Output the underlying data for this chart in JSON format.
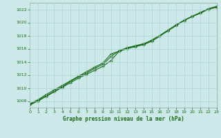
{
  "title": "Graphe pression niveau de la mer (hPa)",
  "xlim": [
    0,
    23
  ],
  "ylim": [
    1007.0,
    1023.0
  ],
  "yticks": [
    1008,
    1010,
    1012,
    1014,
    1016,
    1018,
    1020,
    1022
  ],
  "xticks": [
    0,
    1,
    2,
    3,
    4,
    5,
    6,
    7,
    8,
    9,
    10,
    11,
    12,
    13,
    14,
    15,
    16,
    17,
    18,
    19,
    20,
    21,
    22,
    23
  ],
  "line1_y": [
    1007.4,
    1008.0,
    1008.7,
    1009.4,
    1010.1,
    1010.8,
    1011.5,
    1012.1,
    1012.7,
    1013.3,
    1014.2,
    1015.6,
    1016.1,
    1016.4,
    1016.7,
    1017.3,
    1018.0,
    1018.8,
    1019.6,
    1020.3,
    1020.9,
    1021.4,
    1022.0,
    1022.3
  ],
  "line2_y": [
    1007.6,
    1008.2,
    1009.0,
    1009.7,
    1010.4,
    1011.1,
    1011.8,
    1012.5,
    1013.2,
    1013.8,
    1015.2,
    1015.6,
    1016.0,
    1016.3,
    1016.6,
    1017.1,
    1017.9,
    1018.7,
    1019.5,
    1020.3,
    1020.9,
    1021.5,
    1022.1,
    1022.4
  ],
  "line3_y": [
    1007.5,
    1008.1,
    1008.8,
    1009.5,
    1010.2,
    1011.0,
    1011.7,
    1012.3,
    1013.0,
    1013.6,
    1014.8,
    1015.7,
    1016.15,
    1016.45,
    1016.75,
    1017.25,
    1018.0,
    1018.8,
    1019.6,
    1020.35,
    1020.95,
    1021.5,
    1022.1,
    1022.45
  ],
  "line_color": "#1a6b1a",
  "bg_color": "#cce8e8",
  "grid_color": "#aad4d4",
  "title_color": "#1a6b1a",
  "tick_color": "#1a6b1a",
  "marker": "+"
}
